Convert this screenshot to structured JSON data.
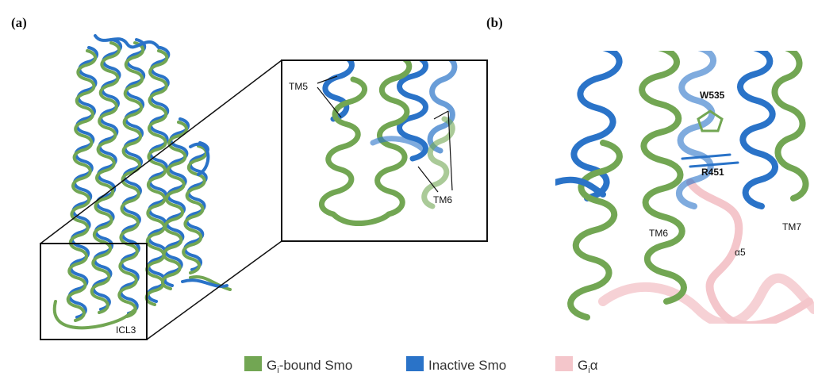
{
  "panel_a": {
    "label": "(a)",
    "inset_labels": {
      "tm5": "TM5",
      "tm6": "TM6"
    },
    "box_label": "ICL3"
  },
  "panel_b": {
    "label": "(b)",
    "labels": {
      "w535": "W535",
      "r451": "R451",
      "tm6": "TM6",
      "tm7": "TM7",
      "a5": "α5"
    }
  },
  "legend": [
    {
      "prefix": "G",
      "subscript": "i",
      "suffix": "-bound Smo",
      "color": "#72a653"
    },
    {
      "prefix": "Inactive Smo",
      "color": "#2a73c8"
    },
    {
      "prefix": "G",
      "subscript": "i",
      "suffix": "α",
      "color": "#f4c6cb"
    }
  ]
}
